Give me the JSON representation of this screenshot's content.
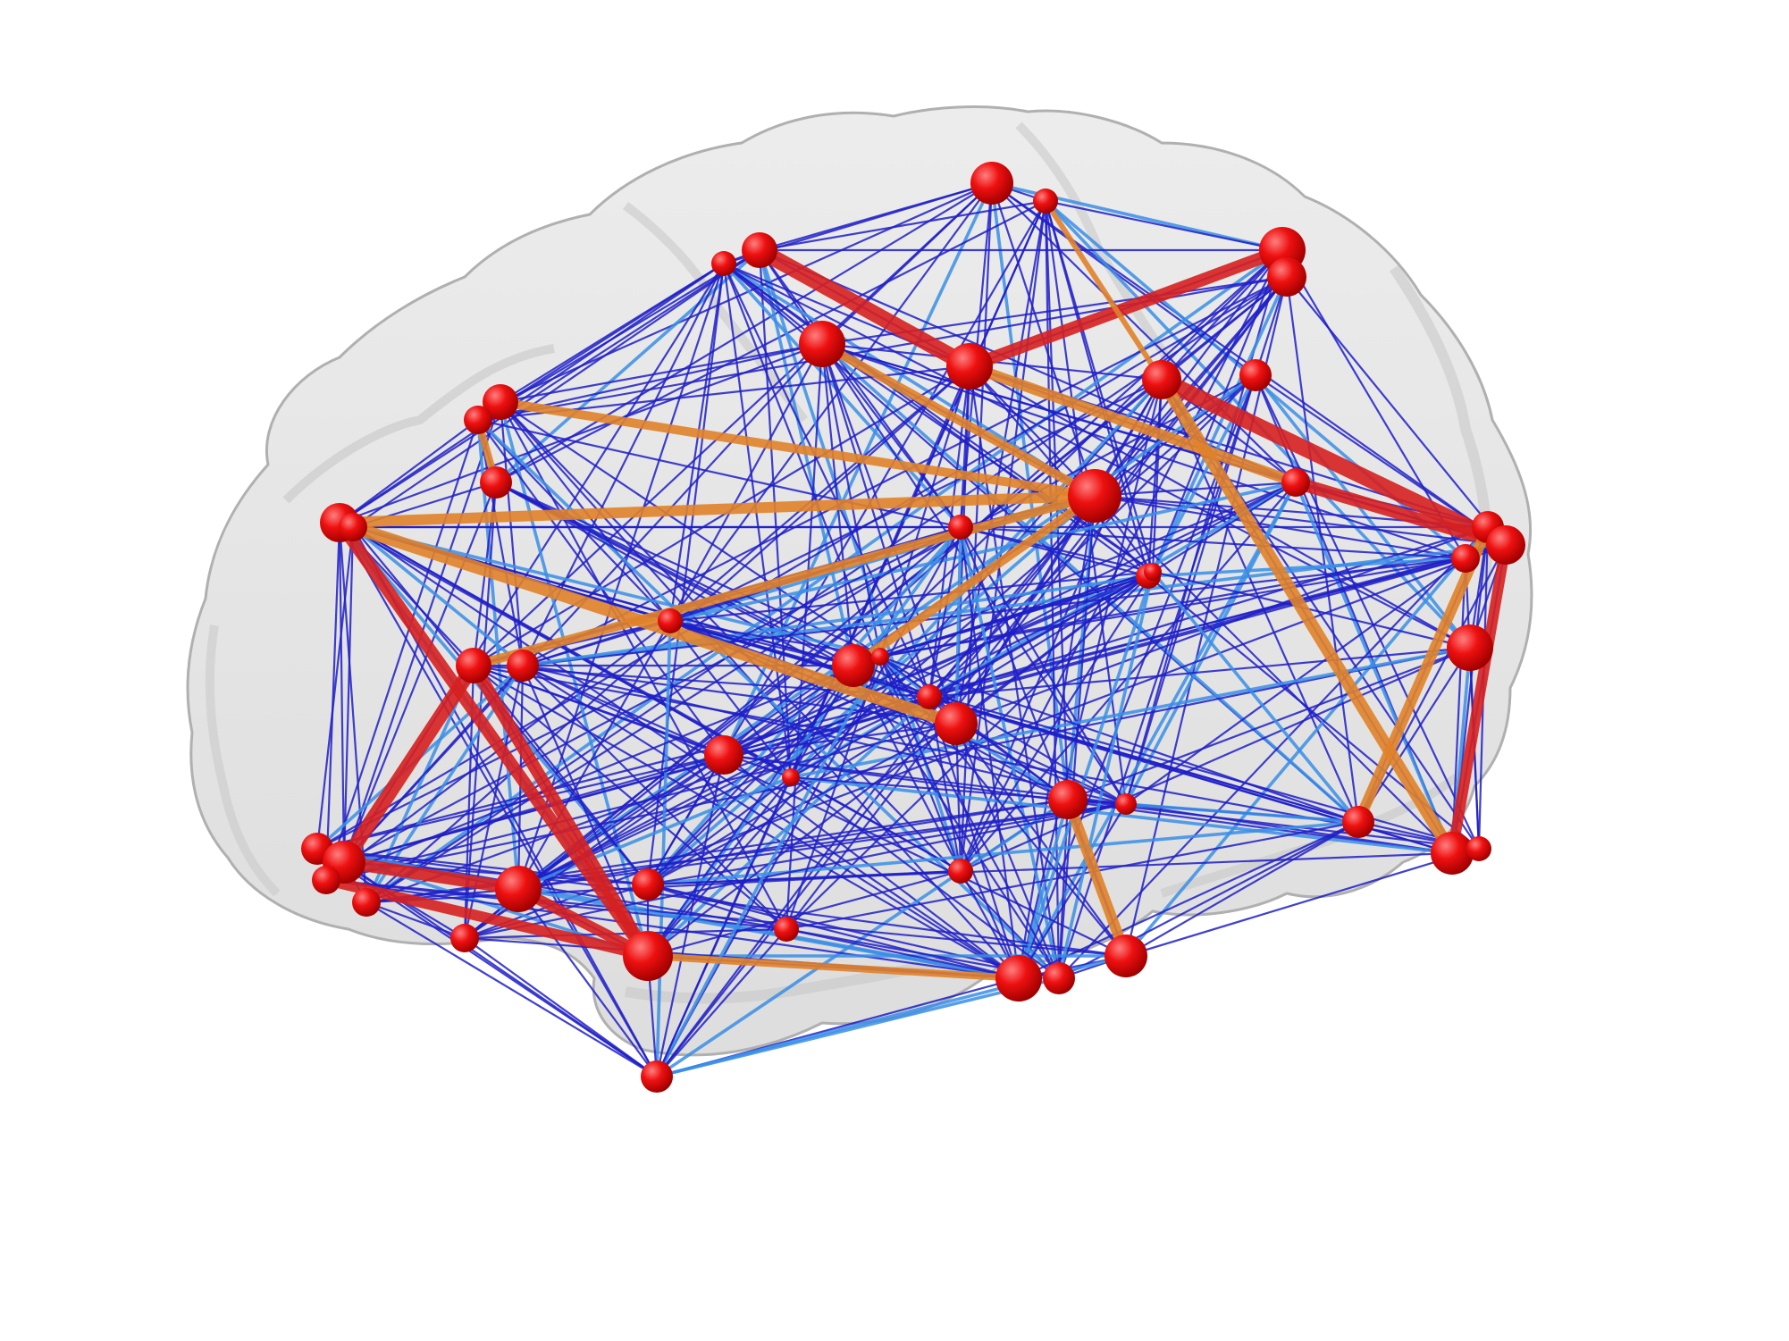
{
  "figure": {
    "background_color": "#ffffff",
    "brain_surface_color": "#d9d9d9",
    "brain_edge_color": "#b5b5b5",
    "node_color": "#e00000",
    "node_highlight": "#ff6a6a",
    "edge_colors": {
      "weak": "#1f1fc8",
      "medium": "#3a8ee6",
      "orange": "#e0822a",
      "strong": "#d62020"
    }
  }
}
